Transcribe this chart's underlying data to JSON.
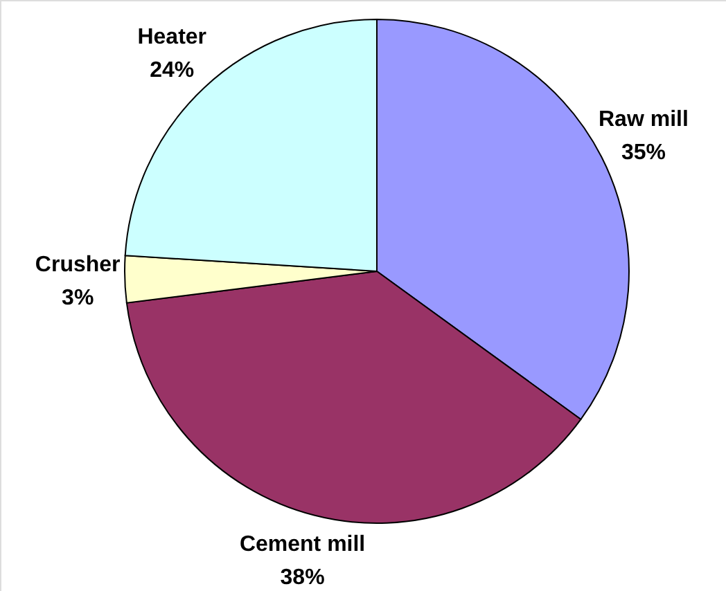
{
  "chart_data": {
    "type": "pie",
    "categories": [
      "Raw mill",
      "Cement mill",
      "Crusher",
      "Heater"
    ],
    "values": [
      35,
      38,
      3,
      24
    ],
    "value_labels": [
      "35%",
      "38%",
      "3%",
      "24%"
    ],
    "colors": [
      "#9999ff",
      "#993366",
      "#ffffcc",
      "#ccffff"
    ]
  }
}
